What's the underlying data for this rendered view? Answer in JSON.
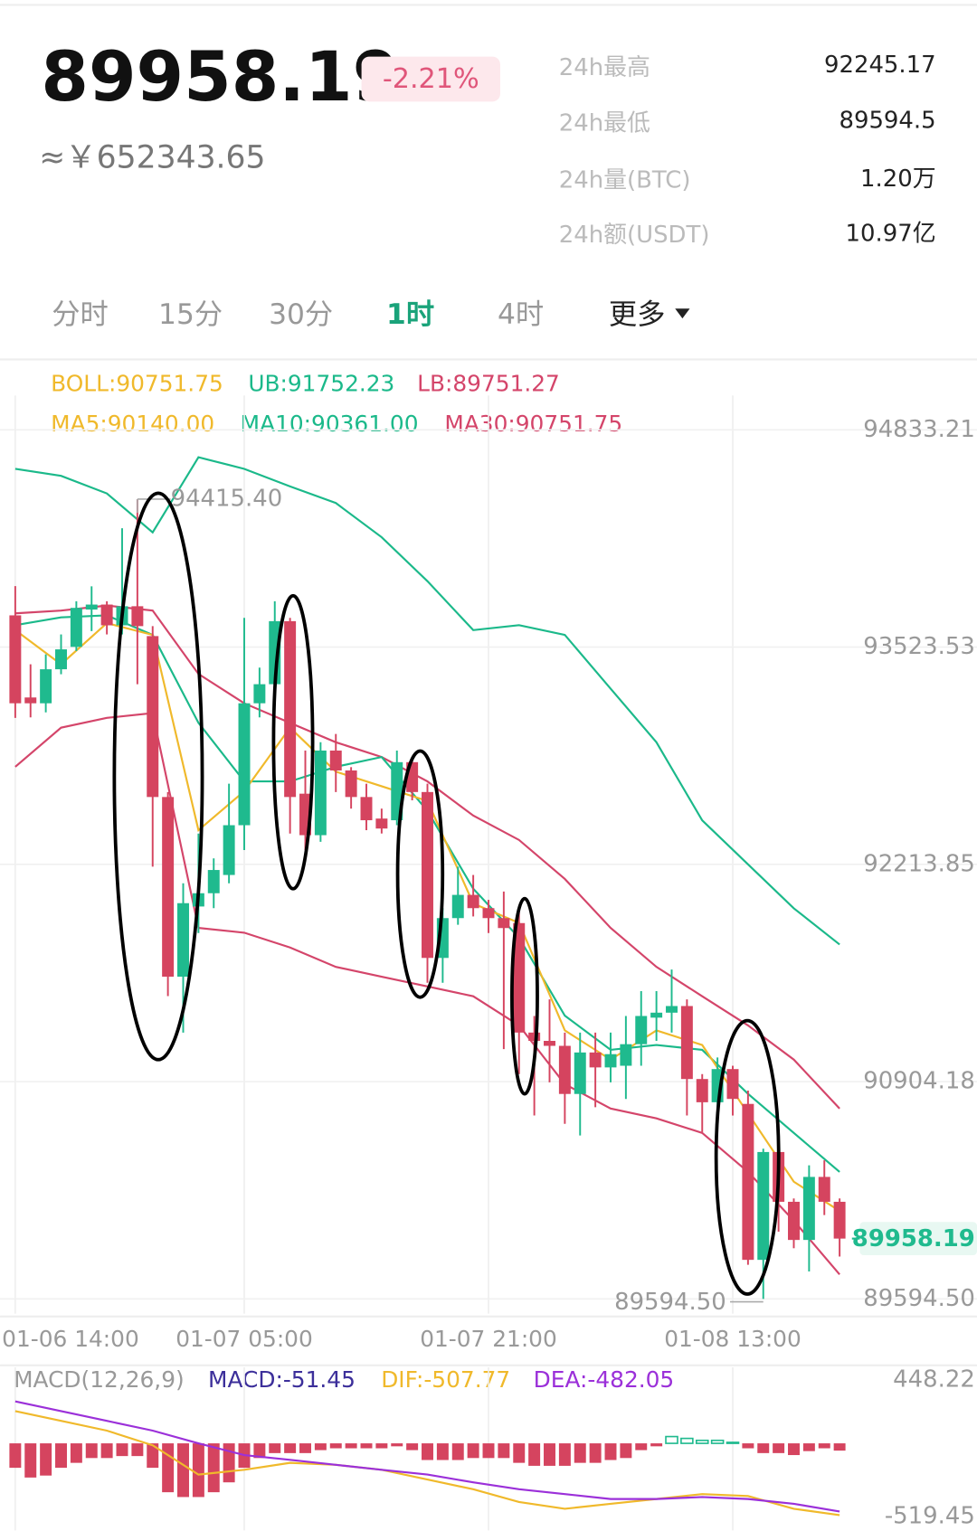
{
  "header": {
    "price": "89958.19",
    "change": "-2.21%",
    "cny": "≈￥652343.65",
    "stats": [
      {
        "label": "24h最高",
        "value": "92245.17"
      },
      {
        "label": "24h最低",
        "value": "89594.5"
      },
      {
        "label": "24h量(BTC)",
        "value": "1.20万"
      },
      {
        "label": "24h额(USDT)",
        "value": "10.97亿"
      }
    ]
  },
  "tabs": [
    "分时",
    "15分",
    "30分",
    "1时",
    "4时",
    "更多"
  ],
  "active_tab": 3,
  "tab_active_color": "#1aa37a",
  "chart_data": [
    {
      "type": "candlestick",
      "legend": [
        [
          {
            "text": "BOLL:90751.75",
            "color": "#f0b92b"
          },
          {
            "text": "UB:91752.23",
            "color": "#1bb98a"
          },
          {
            "text": "LB:89751.27",
            "color": "#d4456a"
          }
        ],
        [
          {
            "text": "MA5:90140.00",
            "color": "#f0b92b"
          },
          {
            "text": "MA10:90361.00",
            "color": "#1bb98a"
          },
          {
            "text": "MA30:90751.75",
            "color": "#d4456a"
          }
        ]
      ],
      "up_color": "#1fba8e",
      "down_color": "#d5445f",
      "x": [
        0,
        1,
        2,
        3,
        4,
        5,
        6,
        7,
        8,
        9,
        10,
        11,
        12,
        13,
        14,
        15,
        16,
        17,
        18,
        19,
        20,
        21,
        22,
        23,
        24,
        25,
        26,
        27,
        28,
        29,
        30,
        31,
        32,
        33,
        34,
        35,
        36,
        37,
        38,
        39,
        40,
        41,
        42,
        43,
        44,
        45,
        46,
        47,
        48,
        49,
        50,
        51,
        52,
        53,
        54
      ],
      "open": [
        93715,
        93220,
        93185,
        93390,
        93525,
        93750,
        93780,
        93655,
        93770,
        93590,
        92620,
        91537,
        91960,
        92040,
        92150,
        92450,
        93185,
        93300,
        93680,
        92640,
        92390,
        92900,
        92780,
        92620,
        92490,
        92480,
        92830,
        92650,
        91650,
        91890,
        92030,
        91950,
        91890,
        91860,
        91200,
        91150,
        91120,
        90830,
        91080,
        90990,
        91000,
        91130,
        91290,
        91320,
        91360,
        90920,
        90780,
        90980,
        90770,
        89830,
        90480,
        90180,
        89950,
        90330,
        90180
      ],
      "high": [
        93891,
        93420,
        93480,
        93600,
        93800,
        93890,
        93800,
        94240,
        94415.4,
        93650,
        92650,
        92100,
        92400,
        92250,
        92700,
        93700,
        93400,
        93800,
        93700,
        92900,
        92950,
        93000,
        92800,
        92700,
        92550,
        92900,
        92850,
        92700,
        91950,
        92200,
        92150,
        92000,
        92050,
        91950,
        91300,
        91400,
        91200,
        91200,
        91200,
        91200,
        91300,
        91450,
        91450,
        91580,
        91400,
        90950,
        91050,
        91000,
        90850,
        90500,
        90500,
        90200,
        90400,
        90430,
        90200
      ],
      "low": [
        93097,
        93100,
        93130,
        93360,
        93500,
        93620,
        93600,
        93600,
        93300,
        92200,
        91420,
        91200,
        91800,
        91950,
        92100,
        92300,
        93100,
        93250,
        92400,
        92300,
        92350,
        92650,
        92550,
        92420,
        92400,
        92450,
        92600,
        91500,
        91500,
        91850,
        91900,
        91800,
        91100,
        90950,
        90700,
        90900,
        90650,
        90580,
        90750,
        90900,
        90800,
        91000,
        91150,
        91200,
        90700,
        90600,
        90650,
        90700,
        89800,
        89594.5,
        90000,
        89900,
        89760,
        90100,
        89850
      ],
      "close": [
        93185,
        93185,
        93390,
        93510,
        93760,
        93780,
        93655,
        93770,
        93650,
        92620,
        91537,
        91980,
        92040,
        92180,
        92450,
        93185,
        93300,
        93680,
        92620,
        92390,
        92900,
        92780,
        92620,
        92480,
        92430,
        92830,
        92650,
        91650,
        91890,
        92030,
        91950,
        91890,
        91830,
        91200,
        91150,
        91120,
        90830,
        91080,
        90990,
        91070,
        91130,
        91300,
        91320,
        91360,
        90920,
        90780,
        90980,
        90800,
        89830,
        90480,
        90180,
        89950,
        90330,
        90180,
        89958.19
      ],
      "line_x": [
        0,
        3,
        6,
        9,
        12,
        15,
        18,
        21,
        24,
        27,
        30,
        33,
        36,
        39,
        42,
        45,
        48,
        51,
        54
      ],
      "lines": [
        {
          "color": "#1bb98a",
          "values": [
            94598,
            94556,
            94450,
            94215,
            94668,
            94598,
            94492,
            94392,
            94186,
            93921,
            93626,
            93656,
            93597,
            93273,
            92950,
            92479,
            92214,
            91949,
            91731
          ]
        },
        {
          "color": "#d4456a",
          "values": [
            93727,
            93744,
            93774,
            93744,
            93362,
            93185,
            93067,
            92950,
            92861,
            92714,
            92508,
            92361,
            92126,
            91831,
            91596,
            91419,
            91243,
            91037,
            90742
          ]
        },
        {
          "color": "#d4456a",
          "values": [
            92802,
            93038,
            93097,
            93126,
            91831,
            91802,
            91713,
            91596,
            91537,
            91478,
            91419,
            91243,
            90889,
            90742,
            90683,
            90595,
            90360,
            90066,
            89742
          ]
        },
        {
          "color": "#1bb98a",
          "values": [
            93656,
            93703,
            93715,
            93597,
            93067,
            92714,
            92714,
            92802,
            92861,
            92537,
            92067,
            91772,
            91302,
            91096,
            91125,
            91096,
            90831,
            90595,
            90360
          ]
        },
        {
          "color": "#f0b92b",
          "values": [
            93626,
            93420,
            93668,
            93597,
            92420,
            92655,
            93038,
            92773,
            92685,
            92596,
            91978,
            91861,
            91213,
            91037,
            91213,
            91125,
            90713,
            90301,
            90125
          ]
        }
      ],
      "xlim": [
        -1,
        63
      ],
      "xticks": [
        {
          "value": 0,
          "label": "01-06 14:00"
        },
        {
          "value": 15,
          "label": "01-07 05:00"
        },
        {
          "value": 31,
          "label": "01-07 21:00"
        },
        {
          "value": 47,
          "label": "01-08 13:00"
        }
      ],
      "ylim": [
        89506,
        95040
      ],
      "yticks": [
        94833.21,
        93523.53,
        92213.85,
        90904.18,
        {
          "value": 89594.5,
          "label": "89594.50"
        }
      ],
      "high_marker": {
        "x": 8,
        "value": 94415.4,
        "label": "94415.40"
      },
      "low_marker": {
        "x": 49,
        "value": 89594.5,
        "label": "89594.50"
      },
      "last_price": 89958.19,
      "grid": true
    },
    {
      "type": "macd",
      "legend": [
        {
          "text": "MACD(12,26,9)",
          "color": "#999999"
        },
        {
          "text": "MACD:-51.45",
          "color": "#3c2f9a"
        },
        {
          "text": "DIF:-507.77",
          "color": "#f0b92b"
        },
        {
          "text": "DEA:-482.05",
          "color": "#9b30d9"
        }
      ],
      "values": [
        -173,
        -242,
        -228,
        -173,
        -138,
        -104,
        -104,
        -90,
        -90,
        -173,
        -346,
        -380,
        -380,
        -346,
        -276,
        -173,
        -104,
        -69,
        -69,
        -69,
        -48,
        -35,
        -35,
        -35,
        -35,
        -21,
        -48,
        -118,
        -118,
        -118,
        -104,
        -104,
        -104,
        -138,
        -159,
        -159,
        -159,
        -138,
        -138,
        -118,
        -104,
        -48,
        -21,
        48,
        35,
        21,
        21,
        7,
        -35,
        -69,
        -69,
        -83,
        -55,
        -35,
        -51.45
      ],
      "up_color": "#1fba8e",
      "down_color": "#d5445f",
      "lines": [
        {
          "color": "#f0b92b",
          "values": [
            228,
            159,
            90,
            -14,
            -221,
            -187,
            -138,
            -152,
            -187,
            -256,
            -325,
            -415,
            -463,
            -428,
            -394,
            -359,
            -373,
            -463,
            -507.77
          ]
        },
        {
          "color": "#9b30d9",
          "values": [
            297,
            228,
            159,
            90,
            0,
            -83,
            -117,
            -152,
            -187,
            -221,
            -276,
            -325,
            -359,
            -394,
            -394,
            -380,
            -394,
            -428,
            -482.05
          ]
        }
      ],
      "ylim": [
        -519.45,
        448.22
      ],
      "yticks": [
        448.22,
        -519.45
      ]
    }
  ]
}
